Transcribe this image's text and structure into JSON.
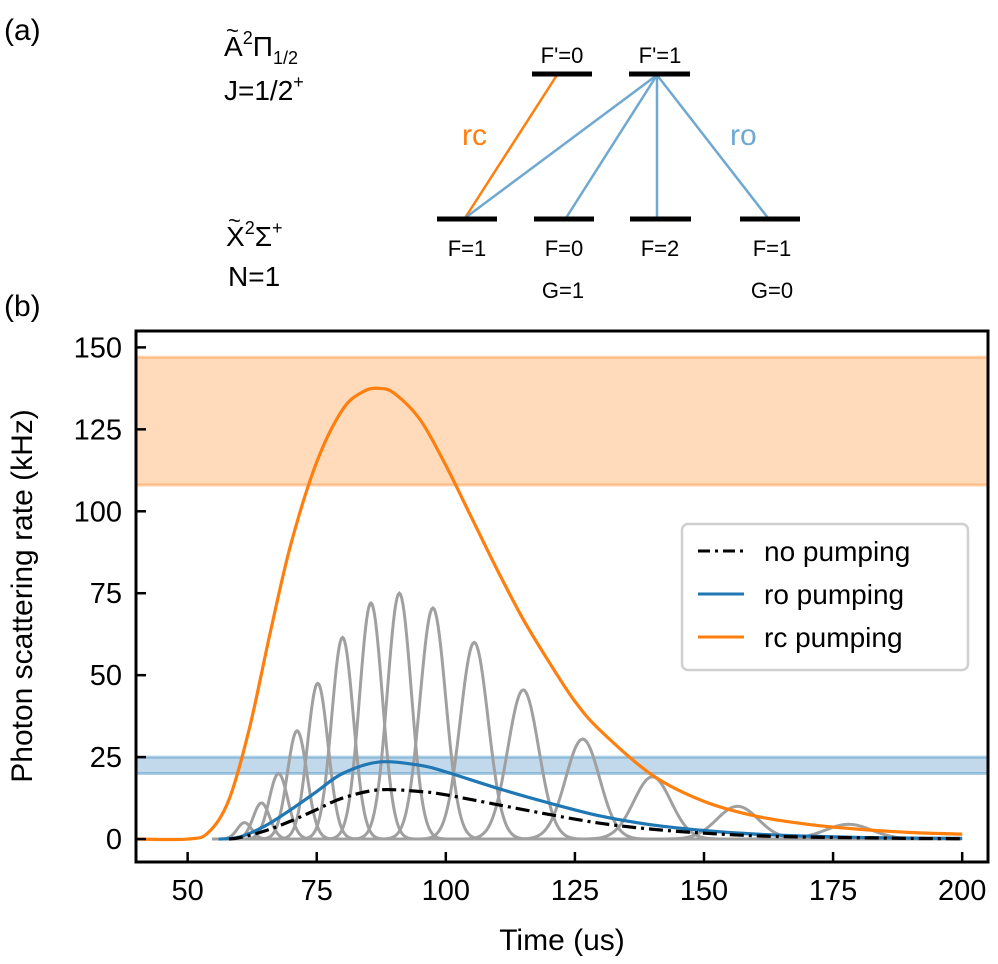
{
  "panel_labels": {
    "a": "(a)",
    "b": "(b)"
  },
  "level_diagram": {
    "excited_state": {
      "term_letter": "A",
      "term_sup": "2",
      "term_symbol": "Π",
      "term_sub": "1/2",
      "j_label": "J=1/2",
      "j_sup": "+"
    },
    "ground_state": {
      "term_letter": "X",
      "term_sup": "2",
      "term_symbol": "Σ",
      "term_sup2": "+",
      "n_label": "N=1"
    },
    "upper_levels": [
      "F'=0",
      "F'=1"
    ],
    "lower_levels": [
      "F=1",
      "F=0",
      "F=2",
      "F=1"
    ],
    "g_labels": [
      "G=1",
      "G=0"
    ],
    "transition_labels": {
      "rc": "rc",
      "ro": "ro"
    },
    "colors": {
      "rc": "#ff7f0e",
      "ro": "#6fa8d0",
      "level": "#000000"
    }
  },
  "chart_data": {
    "type": "line",
    "xlabel": "Time (us)",
    "ylabel": "Photon scattering rate (kHz)",
    "xlim": [
      40,
      205
    ],
    "ylim": [
      -7,
      155
    ],
    "xticks": [
      50,
      75,
      100,
      125,
      150,
      175,
      200
    ],
    "yticks": [
      0,
      25,
      50,
      75,
      100,
      125,
      150
    ],
    "legend_position": "center-right",
    "bands": [
      {
        "name": "rc saturation range",
        "y0": 108,
        "y1": 147,
        "color": "#ff7f0e"
      },
      {
        "name": "ro saturation range",
        "y0": 20,
        "y1": 25,
        "color": "#1f77b4"
      }
    ],
    "series": [
      {
        "name": "no pumping",
        "style": "dashdot",
        "color": "#000000",
        "peak_x": 87,
        "peak_y": 15,
        "x": [
          58,
          60,
          65,
          70,
          75,
          80,
          87,
          95,
          100,
          110,
          120,
          130,
          140,
          150,
          160,
          170,
          180,
          190,
          200
        ],
        "y": [
          0,
          0.4,
          2.5,
          5.5,
          9,
          12.5,
          15,
          14.5,
          13.5,
          10.5,
          7.5,
          4.8,
          3,
          1.8,
          1,
          0.6,
          0.4,
          0.2,
          0.1
        ]
      },
      {
        "name": "ro pumping",
        "style": "solid",
        "color": "#1f77b4",
        "peak_x": 87,
        "peak_y": 23.5,
        "x": [
          56,
          60,
          65,
          70,
          75,
          80,
          87,
          95,
          100,
          110,
          120,
          130,
          140,
          150,
          160,
          170,
          180,
          190,
          200
        ],
        "y": [
          0,
          0.6,
          4,
          9,
          14.5,
          20,
          23.5,
          22.5,
          20.5,
          15.5,
          11,
          7,
          4.3,
          2.6,
          1.5,
          0.9,
          0.5,
          0.3,
          0.2
        ]
      },
      {
        "name": "rc pumping",
        "style": "solid",
        "color": "#ff7f0e",
        "peak_x": 87,
        "peak_y": 137.5,
        "x": [
          40,
          50,
          54,
          58,
          62,
          66,
          70,
          75,
          80,
          84,
          87,
          90,
          95,
          100,
          105,
          110,
          115,
          120,
          125,
          130,
          140,
          150,
          160,
          170,
          180,
          190,
          200
        ],
        "y": [
          0,
          0,
          2,
          12,
          34,
          63,
          90,
          115,
          131,
          136.5,
          137.5,
          136,
          128,
          114,
          98,
          82,
          67,
          54,
          42,
          33,
          19.5,
          11.5,
          7,
          4.5,
          3,
          2,
          1.5
        ]
      },
      {
        "name": "gray pulses",
        "style": "solid",
        "color": "#a0a0a0",
        "pulses": [
          {
            "center": 61,
            "height": 5,
            "width": 1.4
          },
          {
            "center": 64.3,
            "height": 11,
            "width": 1.6
          },
          {
            "center": 67.6,
            "height": 20,
            "width": 1.8
          },
          {
            "center": 71.2,
            "height": 33,
            "width": 1.9
          },
          {
            "center": 75.2,
            "height": 47.5,
            "width": 2.0
          },
          {
            "center": 80,
            "height": 61.5,
            "width": 2.1
          },
          {
            "center": 85.5,
            "height": 72,
            "width": 2.2
          },
          {
            "center": 91,
            "height": 75,
            "width": 2.3
          },
          {
            "center": 97.5,
            "height": 70.5,
            "width": 2.5
          },
          {
            "center": 105.5,
            "height": 60,
            "width": 2.7
          },
          {
            "center": 115,
            "height": 45.5,
            "width": 3.0
          },
          {
            "center": 126.5,
            "height": 30.5,
            "width": 3.3
          },
          {
            "center": 140,
            "height": 19,
            "width": 3.6
          },
          {
            "center": 156.5,
            "height": 10,
            "width": 4.0
          },
          {
            "center": 178,
            "height": 4.5,
            "width": 4.5
          }
        ]
      }
    ]
  }
}
